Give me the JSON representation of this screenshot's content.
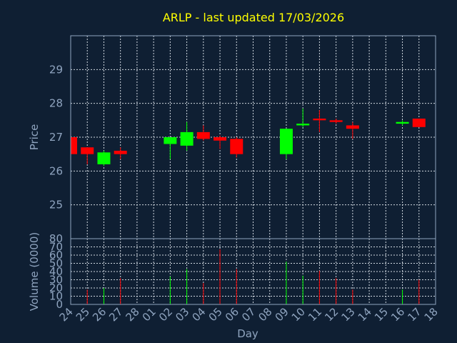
{
  "chart_data": {
    "type": "candlestick",
    "title": "ARLP - last updated 17/03/2026",
    "price_axis": {
      "label": "Price",
      "ticks": [
        25,
        26,
        27,
        28,
        29
      ],
      "range": [
        24.0,
        30.0
      ]
    },
    "volume_axis": {
      "label": "Volume (0000)",
      "ticks": [
        0,
        10,
        20,
        30,
        40,
        50,
        60,
        70,
        80
      ],
      "range": [
        0,
        80
      ]
    },
    "x_axis": {
      "label": "Day",
      "ticks": [
        "24",
        "25",
        "26",
        "27",
        "28",
        "01",
        "02",
        "03",
        "04",
        "05",
        "06",
        "07",
        "08",
        "09",
        "10",
        "11",
        "12",
        "13",
        "14",
        "15",
        "16",
        "17",
        "18"
      ]
    },
    "grid": true,
    "colors": {
      "up": "#00ff00",
      "down": "#ff0000",
      "background": "#0f1f33",
      "title": "#ffff00",
      "axis": "#8fa4bf"
    },
    "candles": [
      {
        "day": "24",
        "open": 27.0,
        "high": 27.05,
        "low": 26.45,
        "close": 26.5,
        "volume": 0
      },
      {
        "day": "25",
        "open": 26.7,
        "high": 26.7,
        "low": 26.2,
        "close": 26.5,
        "volume": 18
      },
      {
        "day": "26",
        "open": 26.2,
        "high": 26.6,
        "low": 26.15,
        "close": 26.55,
        "volume": 20
      },
      {
        "day": "27",
        "open": 26.6,
        "high": 26.7,
        "low": 26.35,
        "close": 26.5,
        "volume": 32
      },
      {
        "day": "02",
        "open": 26.8,
        "high": 27.0,
        "low": 26.35,
        "close": 27.0,
        "volume": 34
      },
      {
        "day": "03",
        "open": 26.75,
        "high": 27.45,
        "low": 26.6,
        "close": 27.15,
        "volume": 43
      },
      {
        "day": "04",
        "open": 27.15,
        "high": 27.35,
        "low": 26.9,
        "close": 26.95,
        "volume": 26
      },
      {
        "day": "05",
        "open": 27.0,
        "high": 27.05,
        "low": 26.65,
        "close": 26.9,
        "volume": 67
      },
      {
        "day": "06",
        "open": 26.95,
        "high": 27.0,
        "low": 26.4,
        "close": 26.5,
        "volume": 43
      },
      {
        "day": "09",
        "open": 26.5,
        "high": 27.25,
        "low": 26.35,
        "close": 27.25,
        "volume": 52
      },
      {
        "day": "10",
        "open": 27.35,
        "high": 27.85,
        "low": 27.3,
        "close": 27.4,
        "volume": 35
      },
      {
        "day": "11",
        "open": 27.55,
        "high": 27.8,
        "low": 27.15,
        "close": 27.5,
        "volume": 41
      },
      {
        "day": "12",
        "open": 27.5,
        "high": 27.55,
        "low": 27.4,
        "close": 27.45,
        "volume": 32
      },
      {
        "day": "13",
        "open": 27.35,
        "high": 27.45,
        "low": 26.95,
        "close": 27.25,
        "volume": 18
      },
      {
        "day": "16",
        "open": 27.4,
        "high": 27.5,
        "low": 27.35,
        "close": 27.45,
        "volume": 18
      },
      {
        "day": "17",
        "open": 27.55,
        "high": 27.55,
        "low": 27.3,
        "close": 27.3,
        "volume": 30
      }
    ]
  }
}
